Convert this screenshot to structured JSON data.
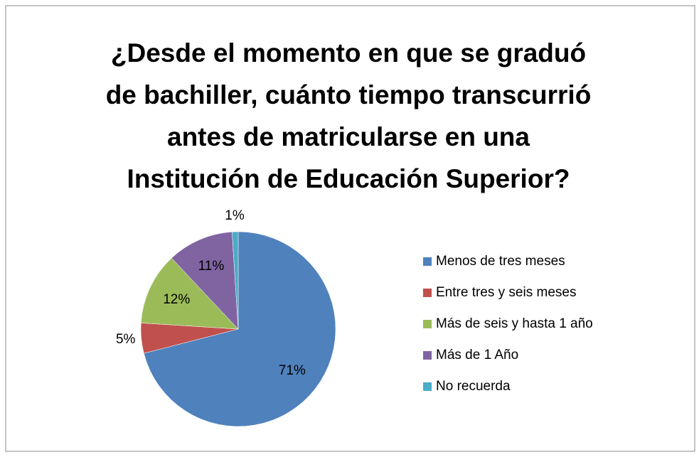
{
  "chart_data": {
    "type": "pie",
    "title": [
      "¿Desde el momento en que se graduó",
      "de bachiller, cuánto tiempo transcurrió",
      "antes de matricularse en una",
      "Institución de Educación Superior?"
    ],
    "categories": [
      "Menos de tres meses",
      "Entre tres y seis meses",
      "Más de seis y hasta 1 año",
      "Más de 1 Año",
      "No recuerda"
    ],
    "values": [
      71,
      5,
      12,
      11,
      1
    ],
    "value_labels": [
      "71%",
      "5%",
      "12%",
      "11%",
      "1%"
    ],
    "colors": [
      "#4f81bd",
      "#c0504d",
      "#9bbb59",
      "#8064a2",
      "#4bacc6"
    ],
    "legend": "right"
  }
}
